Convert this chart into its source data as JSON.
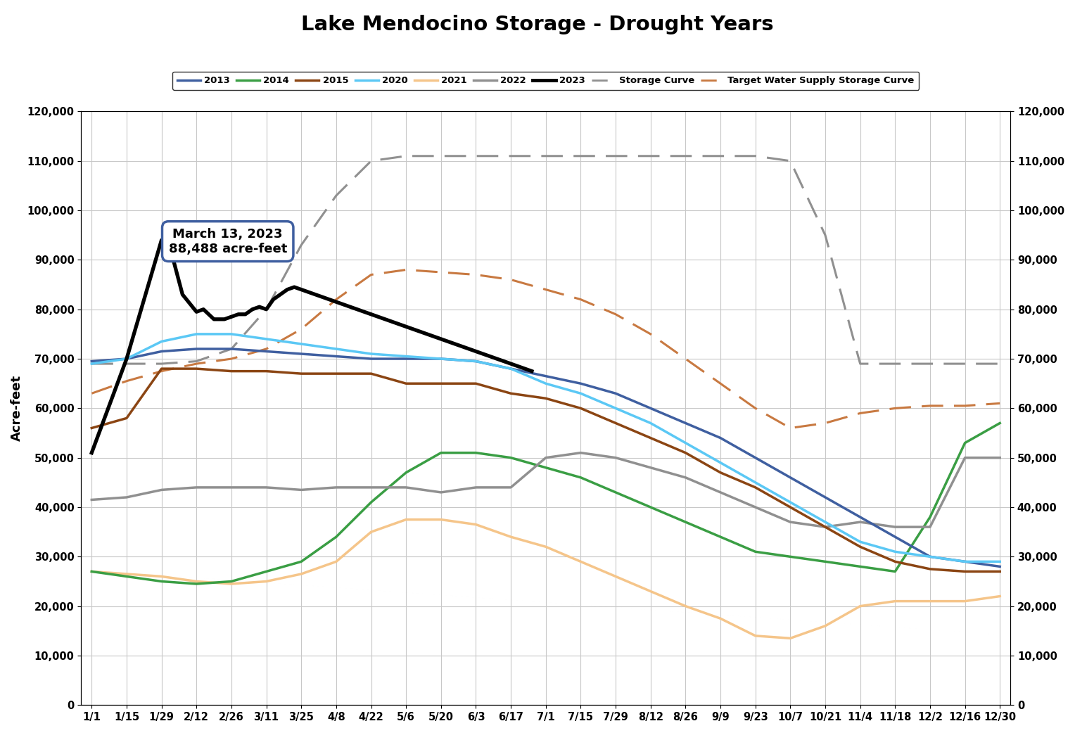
{
  "title": "Lake Mendocino Storage - Drought Years",
  "ylabel": "Acre-feet",
  "ylim": [
    0,
    120000
  ],
  "yticks": [
    0,
    10000,
    20000,
    30000,
    40000,
    50000,
    60000,
    70000,
    80000,
    90000,
    100000,
    110000,
    120000
  ],
  "background_color": "#ffffff",
  "grid_color": "#c8c8c8",
  "annotation_text": "March 13, 2023\n88,488 acre-feet",
  "x_labels": [
    "1/1",
    "1/15",
    "1/29",
    "2/12",
    "2/26",
    "3/11",
    "3/25",
    "4/8",
    "4/22",
    "5/6",
    "5/20",
    "6/3",
    "6/17",
    "7/1",
    "7/15",
    "7/29",
    "8/12",
    "8/26",
    "9/9",
    "9/23",
    "10/7",
    "10/21",
    "11/4",
    "11/18",
    "12/2",
    "12/16",
    "12/30"
  ],
  "colors": {
    "2013": "#3f5fa0",
    "2014": "#3a9e44",
    "2015": "#8b4513",
    "2020": "#5bc8f5",
    "2021": "#f5c58a",
    "2022": "#909090",
    "2023": "#000000",
    "storage": "#909090",
    "target": "#c87941"
  },
  "series_2013": [
    69500,
    70000,
    71500,
    72000,
    72000,
    71500,
    71000,
    70500,
    70000,
    70000,
    70000,
    69500,
    68000,
    66500,
    65000,
    63000,
    60000,
    57000,
    54000,
    50000,
    46000,
    42000,
    38000,
    34000,
    30000,
    29000,
    28000
  ],
  "series_2014": [
    27000,
    26000,
    25000,
    24500,
    25000,
    27000,
    29000,
    34000,
    41000,
    47000,
    51000,
    51000,
    50000,
    48000,
    46000,
    43000,
    40000,
    37000,
    34000,
    31000,
    30000,
    29000,
    28000,
    27000,
    38000,
    53000,
    57000
  ],
  "series_2015": [
    56000,
    58000,
    68000,
    68000,
    67500,
    67500,
    67000,
    67000,
    67000,
    65000,
    65000,
    65000,
    63000,
    62000,
    60000,
    57000,
    54000,
    51000,
    47000,
    44000,
    40000,
    36000,
    32000,
    29000,
    27500,
    27000,
    27000
  ],
  "series_2020": [
    69000,
    70000,
    73500,
    75000,
    75000,
    74000,
    73000,
    72000,
    71000,
    70500,
    70000,
    69500,
    68000,
    65000,
    63000,
    60000,
    57000,
    53000,
    49000,
    45000,
    41000,
    37000,
    33000,
    31000,
    30000,
    29000,
    29000
  ],
  "series_2021": [
    27000,
    26500,
    26000,
    25000,
    24500,
    25000,
    26500,
    29000,
    35000,
    37500,
    37500,
    36500,
    34000,
    32000,
    29000,
    26000,
    23000,
    20000,
    17500,
    14000,
    13500,
    16000,
    20000,
    21000,
    21000,
    21000,
    22000
  ],
  "series_2022": [
    41500,
    42000,
    43500,
    44000,
    44000,
    44000,
    43500,
    44000,
    44000,
    44000,
    43000,
    44000,
    44000,
    50000,
    51000,
    50000,
    48000,
    46000,
    43000,
    40000,
    37000,
    36000,
    37000,
    36000,
    36000,
    50000,
    50000
  ],
  "series_2023_x": [
    0,
    1,
    2,
    2.3,
    2.6,
    3,
    3.2,
    3.5,
    3.8,
    4.0,
    4.2,
    4.4,
    4.6,
    4.8,
    5.0,
    5.2,
    5.4,
    5.6,
    5.8,
    6.0,
    6.2,
    6.4,
    6.6,
    6.8,
    7.0,
    7.2,
    7.4,
    7.6,
    7.8,
    8.0,
    8.2,
    8.4,
    8.6,
    8.8,
    9.0,
    9.2,
    9.4,
    9.6,
    9.8,
    10.0,
    10.2,
    10.4,
    10.6,
    10.8,
    11.0,
    11.2,
    11.4,
    11.6,
    11.8,
    12.0,
    12.2,
    12.4,
    12.6
  ],
  "series_2023_y": [
    51000,
    70000,
    94000,
    91000,
    83000,
    79500,
    80000,
    78000,
    78000,
    78500,
    79000,
    79000,
    80000,
    80500,
    80000,
    82000,
    83000,
    84000,
    84500,
    84000,
    83500,
    83000,
    82500,
    82000,
    81500,
    81000,
    80500,
    80000,
    79500,
    79000,
    78500,
    78000,
    77500,
    77000,
    76500,
    76000,
    75500,
    75000,
    74500,
    74000,
    73500,
    73000,
    72500,
    72000,
    71500,
    71000,
    70500,
    70000,
    69500,
    69000,
    68500,
    68000,
    67500
  ],
  "series_storage": [
    69000,
    69000,
    69000,
    69500,
    72000,
    80000,
    93000,
    103000,
    110000,
    111000,
    111000,
    111000,
    111000,
    111000,
    111000,
    111000,
    111000,
    111000,
    111000,
    111000,
    110000,
    95000,
    69000,
    69000,
    69000,
    69000,
    69000
  ],
  "series_target": [
    63000,
    65500,
    67500,
    69000,
    70000,
    72000,
    76000,
    82000,
    87000,
    88000,
    87500,
    87000,
    86000,
    84000,
    82000,
    79000,
    75000,
    70000,
    65000,
    60000,
    56000,
    57000,
    59000,
    60000,
    60500,
    60500,
    61000
  ]
}
